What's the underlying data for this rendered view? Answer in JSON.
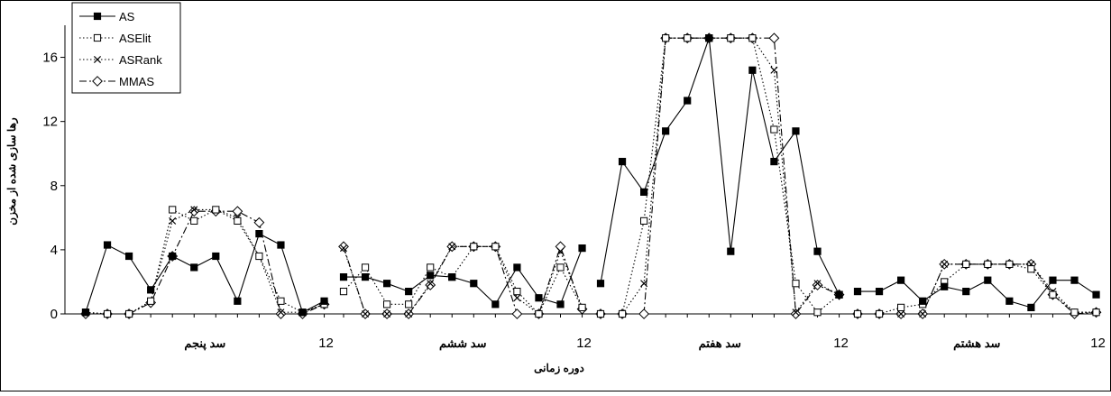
{
  "chart_data": {
    "type": "line",
    "title": "",
    "xlabel": "دوره زمانی",
    "ylabel": "رها سازی شده از مخزن",
    "ylim": [
      0,
      18
    ],
    "yticks": [
      0,
      4,
      8,
      12,
      16
    ],
    "grid": false,
    "legend_position": "top-left",
    "groups": [
      {
        "label": "سد پنجم",
        "end_tick": "12"
      },
      {
        "label": "سد ششم",
        "end_tick": "12"
      },
      {
        "label": "سد هفتم",
        "end_tick": "12"
      },
      {
        "label": "سد هشتم",
        "end_tick": "12"
      }
    ],
    "x": [
      1,
      2,
      3,
      4,
      5,
      6,
      7,
      8,
      9,
      10,
      11,
      12
    ],
    "series": [
      {
        "name": "AS",
        "color": "#000000",
        "style": "solid",
        "marker": "filled-square",
        "groups": [
          [
            0.1,
            4.3,
            3.6,
            1.5,
            3.6,
            2.9,
            3.6,
            0.8,
            5.0,
            4.3,
            0.1,
            0.8
          ],
          [
            2.3,
            2.3,
            1.9,
            1.4,
            2.4,
            2.3,
            1.9,
            0.6,
            2.9,
            1.0,
            0.6,
            4.1
          ],
          [
            1.9,
            9.5,
            7.6,
            11.4,
            13.3,
            17.2,
            3.9,
            15.2,
            9.5,
            11.4,
            3.9,
            1.2
          ],
          [
            1.4,
            1.4,
            2.1,
            0.8,
            1.7,
            1.4,
            2.1,
            0.8,
            0.4,
            2.1,
            2.1,
            1.2
          ]
        ]
      },
      {
        "name": "ASElit",
        "color": "#000000",
        "style": "dotted",
        "marker": "open-square",
        "groups": [
          [
            0.1,
            0.0,
            0.0,
            0.8,
            6.5,
            5.8,
            6.5,
            5.8,
            3.6,
            0.8,
            0.1,
            0.6
          ],
          [
            1.4,
            2.9,
            0.6,
            0.6,
            2.9,
            2.3,
            4.2,
            4.2,
            1.4,
            0.0,
            2.9,
            0.4
          ],
          [
            0.0,
            0.0,
            5.8,
            17.2,
            17.2,
            17.2,
            17.2,
            17.2,
            11.5,
            1.9,
            0.1,
            1.2
          ],
          [
            0.0,
            0.0,
            0.4,
            0.6,
            2.0,
            3.1,
            3.1,
            3.1,
            2.8,
            1.2,
            0.1,
            0.1
          ]
        ]
      },
      {
        "name": "ASRank",
        "color": "#000000",
        "style": "dotted",
        "marker": "x",
        "groups": [
          [
            0.1,
            0.0,
            0.0,
            0.8,
            5.8,
            6.5,
            6.5,
            6.0,
            3.6,
            0.1,
            0.1,
            0.6
          ],
          [
            4.1,
            0.0,
            0.0,
            0.0,
            1.9,
            4.2,
            4.2,
            4.2,
            1.0,
            0.0,
            3.9,
            0.4
          ],
          [
            0.0,
            0.0,
            1.9,
            17.2,
            17.2,
            17.2,
            17.2,
            17.2,
            15.2,
            0.1,
            1.9,
            1.2
          ],
          [
            0.0,
            0.0,
            0.0,
            0.0,
            3.1,
            3.1,
            3.1,
            3.1,
            3.1,
            1.4,
            0.1,
            0.1
          ]
        ]
      },
      {
        "name": "MMAS",
        "color": "#000000",
        "style": "dash-dot",
        "marker": "open-diamond",
        "groups": [
          [
            0.0,
            0.0,
            0.0,
            0.7,
            3.6,
            6.4,
            6.4,
            6.4,
            5.7,
            0.0,
            0.0,
            0.6
          ],
          [
            4.2,
            0.0,
            0.0,
            0.0,
            1.8,
            4.2,
            4.2,
            4.2,
            0.0,
            0.0,
            4.2,
            0.3
          ],
          [
            0.0,
            0.0,
            0.0,
            17.2,
            17.2,
            17.2,
            17.2,
            17.2,
            17.2,
            0.0,
            1.8,
            1.2
          ],
          [
            0.0,
            0.0,
            0.0,
            0.0,
            3.1,
            3.1,
            3.1,
            3.1,
            3.1,
            1.2,
            0.0,
            0.1
          ]
        ]
      }
    ]
  }
}
